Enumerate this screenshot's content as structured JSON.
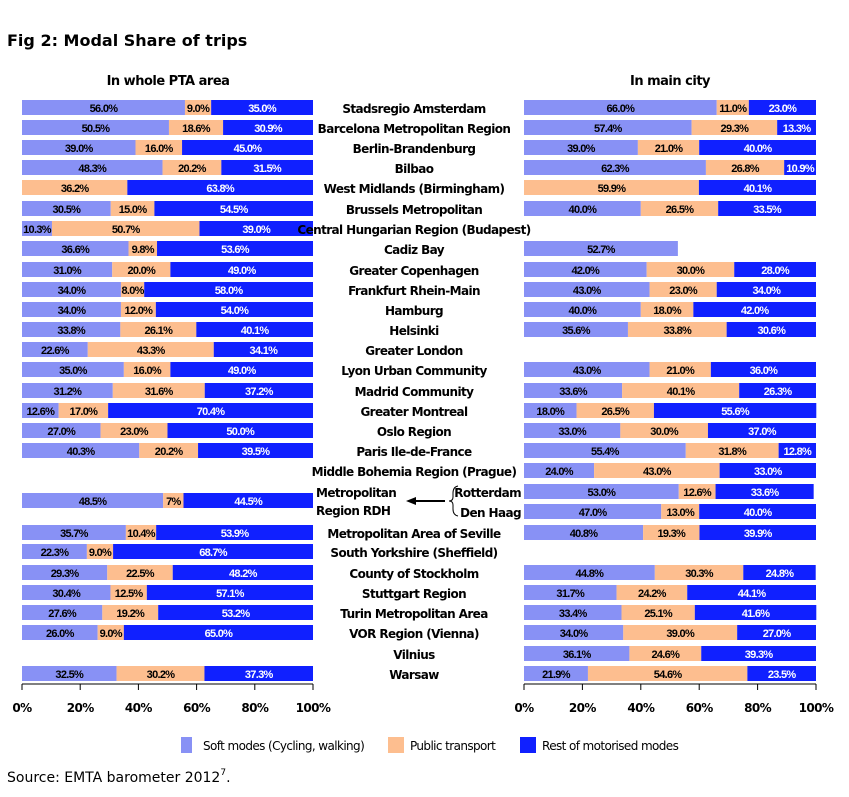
{
  "figure_title": "Fig 2: Modal Share of trips",
  "source": {
    "text": "Source: EMTA barometer 2012",
    "footnote": "7",
    "end": "."
  },
  "colors": {
    "soft": "#8891f5",
    "public": "#fdbe8f",
    "rest": "#1020ff"
  },
  "legend": [
    "Soft modes (Cycling, walking)",
    "Public transport",
    "Rest of motorised modes"
  ],
  "chart_data": [
    {
      "type": "bar",
      "orientation": "horizontal-stacked",
      "title": "In whole PTA area",
      "xlim": [
        0,
        100
      ],
      "ticks": [
        "0%",
        "20%",
        "40%",
        "60%",
        "80%",
        "100%"
      ],
      "series_names": [
        "Soft modes (Cycling, walking)",
        "Public transport",
        "Rest of motorised modes"
      ],
      "categories": [
        "Stadsregio Amsterdam",
        "Barcelona Metropolitan Region",
        "Berlin-Brandenburg",
        "Bilbao",
        "West Midlands (Birmingham)",
        "Brussels Metropolitan",
        "Central Hungarian Region (Budapest)",
        "Cadiz Bay",
        "Greater Copenhagen",
        "Frankfurt Rhein-Main",
        "Hamburg",
        "Helsinki",
        "Greater London",
        "Lyon Urban Community",
        "Madrid Community",
        "Greater Montreal",
        "Oslo Region",
        "Paris Ile-de-France",
        "Middle Bohemia Region (Prague)",
        "Metropolitan Region RDH",
        "Metropolitan Area of Seville",
        "South Yorkshire (Sheffield)",
        "County of Stockholm",
        "Stuttgart Region",
        "Turin Metropolitan Area",
        "VOR Region (Vienna)",
        "Vilnius",
        "Warsaw"
      ],
      "values": [
        [
          56.0,
          9.0,
          35.0
        ],
        [
          50.5,
          18.6,
          30.9
        ],
        [
          39.0,
          16.0,
          45.0
        ],
        [
          48.3,
          20.2,
          31.5
        ],
        [
          null,
          36.2,
          63.8
        ],
        [
          30.5,
          15.0,
          54.5
        ],
        [
          10.3,
          50.7,
          39.0
        ],
        [
          36.6,
          9.8,
          53.6
        ],
        [
          31.0,
          20.0,
          49.0
        ],
        [
          34.0,
          8.0,
          58.0
        ],
        [
          34.0,
          12.0,
          54.0
        ],
        [
          33.8,
          26.1,
          40.1
        ],
        [
          22.6,
          43.3,
          34.1
        ],
        [
          35.0,
          16.0,
          49.0
        ],
        [
          31.2,
          31.6,
          37.2
        ],
        [
          12.6,
          17.0,
          70.4
        ],
        [
          27.0,
          23.0,
          50.0
        ],
        [
          40.3,
          20.2,
          39.5
        ],
        null,
        [
          48.5,
          7,
          44.5
        ],
        [
          35.7,
          10.4,
          53.9
        ],
        [
          22.3,
          9.0,
          68.7
        ],
        [
          29.3,
          22.5,
          48.2
        ],
        [
          30.4,
          12.5,
          57.1
        ],
        [
          27.6,
          19.2,
          53.2
        ],
        [
          26.0,
          9.0,
          65.0
        ],
        null,
        [
          32.5,
          30.2,
          37.3
        ]
      ],
      "value_labels": [
        [
          "56.0%",
          "9.0%",
          "35.0%"
        ],
        [
          "50.5%",
          "18.6%",
          "30.9%"
        ],
        [
          "39.0%",
          "16.0%",
          "45.0%"
        ],
        [
          "48.3%",
          "20.2%",
          "31.5%"
        ],
        [
          null,
          "36.2%",
          "63.8%"
        ],
        [
          "30.5%",
          "15.0%",
          "54.5%"
        ],
        [
          "10.3%",
          "50.7%",
          "39.0%"
        ],
        [
          "36.6%",
          "9.8%",
          "53.6%"
        ],
        [
          "31.0%",
          "20.0%",
          "49.0%"
        ],
        [
          "34.0%",
          "8.0%",
          "58.0%"
        ],
        [
          "34.0%",
          "12.0%",
          "54.0%"
        ],
        [
          "33.8%",
          "26.1%",
          "40.1%"
        ],
        [
          "22.6%",
          "43.3%",
          "34.1%"
        ],
        [
          "35.0%",
          "16.0%",
          "49.0%"
        ],
        [
          "31.2%",
          "31.6%",
          "37.2%"
        ],
        [
          "12.6%",
          "17.0%",
          "70.4%"
        ],
        [
          "27.0%",
          "23.0%",
          "50.0%"
        ],
        [
          "40.3%",
          "20.2%",
          "39.5%"
        ],
        null,
        [
          "48.5%",
          "7%",
          "44.5%"
        ],
        [
          "35.7%",
          "10.4%",
          "53.9%"
        ],
        [
          "22.3%",
          "9.0%",
          "68.7%"
        ],
        [
          "29.3%",
          "22.5%",
          "48.2%"
        ],
        [
          "30.4%",
          "12.5%",
          "57.1%"
        ],
        [
          "27.6%",
          "19.2%",
          "53.2%"
        ],
        [
          "26.0%",
          "9.0%",
          "65.0%"
        ],
        null,
        [
          "32.5%",
          "30.2%",
          "37.3%"
        ]
      ]
    },
    {
      "type": "bar",
      "orientation": "horizontal-stacked",
      "title": "In main city",
      "xlim": [
        0,
        100
      ],
      "ticks": [
        "0%",
        "20%",
        "40%",
        "60%",
        "80%",
        "100%"
      ],
      "series_names": [
        "Soft modes (Cycling, walking)",
        "Public transport",
        "Rest of motorised modes"
      ],
      "categories": [
        "Stadsregio Amsterdam",
        "Barcelona Metropolitan Region",
        "Berlin-Brandenburg",
        "Bilbao",
        "West Midlands (Birmingham)",
        "Brussels Metropolitan",
        "Central Hungarian Region (Budapest)",
        "Cadiz Bay",
        "Greater Copenhagen",
        "Frankfurt Rhein-Main",
        "Hamburg",
        "Helsinki",
        "Greater London",
        "Lyon Urban Community",
        "Madrid Community",
        "Greater Montreal",
        "Oslo Region",
        "Paris Ile-de-France",
        "Middle Bohemia Region (Prague)",
        "Rotterdam",
        "Den Haag",
        "Metropolitan Area of Seville",
        "South Yorkshire (Sheffield)",
        "County of Stockholm",
        "Stuttgart Region",
        "Turin Metropolitan Area",
        "VOR Region (Vienna)",
        "Vilnius",
        "Warsaw"
      ],
      "values": [
        [
          66.0,
          11.0,
          23.0
        ],
        [
          57.4,
          29.3,
          13.3
        ],
        [
          39.0,
          21.0,
          40.0
        ],
        [
          62.3,
          26.8,
          10.9
        ],
        [
          null,
          59.9,
          40.1
        ],
        [
          40.0,
          26.5,
          33.5
        ],
        null,
        [
          52.7,
          null,
          null
        ],
        [
          42.0,
          30.0,
          28.0
        ],
        [
          43.0,
          23.0,
          34.0
        ],
        [
          40.0,
          18.0,
          42.0
        ],
        [
          35.6,
          33.8,
          30.6
        ],
        null,
        [
          43.0,
          21.0,
          36.0
        ],
        [
          33.6,
          40.1,
          26.3
        ],
        [
          18.0,
          26.5,
          55.6
        ],
        [
          33.0,
          30.0,
          37.0
        ],
        [
          55.4,
          31.8,
          12.8
        ],
        [
          24.0,
          43.0,
          33.0
        ],
        [
          53.0,
          12.6,
          33.6
        ],
        [
          47.0,
          13.0,
          40.0
        ],
        [
          40.8,
          19.3,
          39.9
        ],
        null,
        [
          44.8,
          30.3,
          24.8
        ],
        [
          31.7,
          24.2,
          44.1
        ],
        [
          33.4,
          25.1,
          41.6
        ],
        [
          34.0,
          39.0,
          27.0
        ],
        [
          36.1,
          24.6,
          39.3
        ],
        [
          21.9,
          54.6,
          23.5
        ]
      ],
      "value_labels": [
        [
          "66.0%",
          "11.0%",
          "23.0%"
        ],
        [
          "57.4%",
          "29.3%",
          "13.3%"
        ],
        [
          "39.0%",
          "21.0%",
          "40.0%"
        ],
        [
          "62.3%",
          "26.8%",
          "10.9%"
        ],
        [
          null,
          "59.9%",
          "40.1%"
        ],
        [
          "40.0%",
          "26.5%",
          "33.5%"
        ],
        null,
        [
          "52.7%",
          null,
          null
        ],
        [
          "42.0%",
          "30.0%",
          "28.0%"
        ],
        [
          "43.0%",
          "23.0%",
          "34.0%"
        ],
        [
          "40.0%",
          "18.0%",
          "42.0%"
        ],
        [
          "35.6%",
          "33.8%",
          "30.6%"
        ],
        null,
        [
          "43.0%",
          "21.0%",
          "36.0%"
        ],
        [
          "33.6%",
          "40.1%",
          "26.3%"
        ],
        [
          "18.0%",
          "26.5%",
          "55.6%"
        ],
        [
          "33.0%",
          "30.0%",
          "37.0%"
        ],
        [
          "55.4%",
          "31.8%",
          "12.8%"
        ],
        [
          "24.0%",
          "43.0%",
          "33.0%"
        ],
        [
          "53.0%",
          "12.6%",
          "33.6%"
        ],
        [
          "47.0%",
          "13.0%",
          "40.0%"
        ],
        [
          "40.8%",
          "19.3%",
          "39.9%"
        ],
        null,
        [
          "44.8%",
          "30.3%",
          "24.8%"
        ],
        [
          "31.7%",
          "24.2%",
          "44.1%"
        ],
        [
          "33.4%",
          "25.1%",
          "41.6%"
        ],
        [
          "34.0%",
          "39.0%",
          "27.0%"
        ],
        [
          "36.1%",
          "24.6%",
          "39.3%"
        ],
        [
          "21.9%",
          "54.6%",
          "23.5%"
        ]
      ]
    }
  ]
}
